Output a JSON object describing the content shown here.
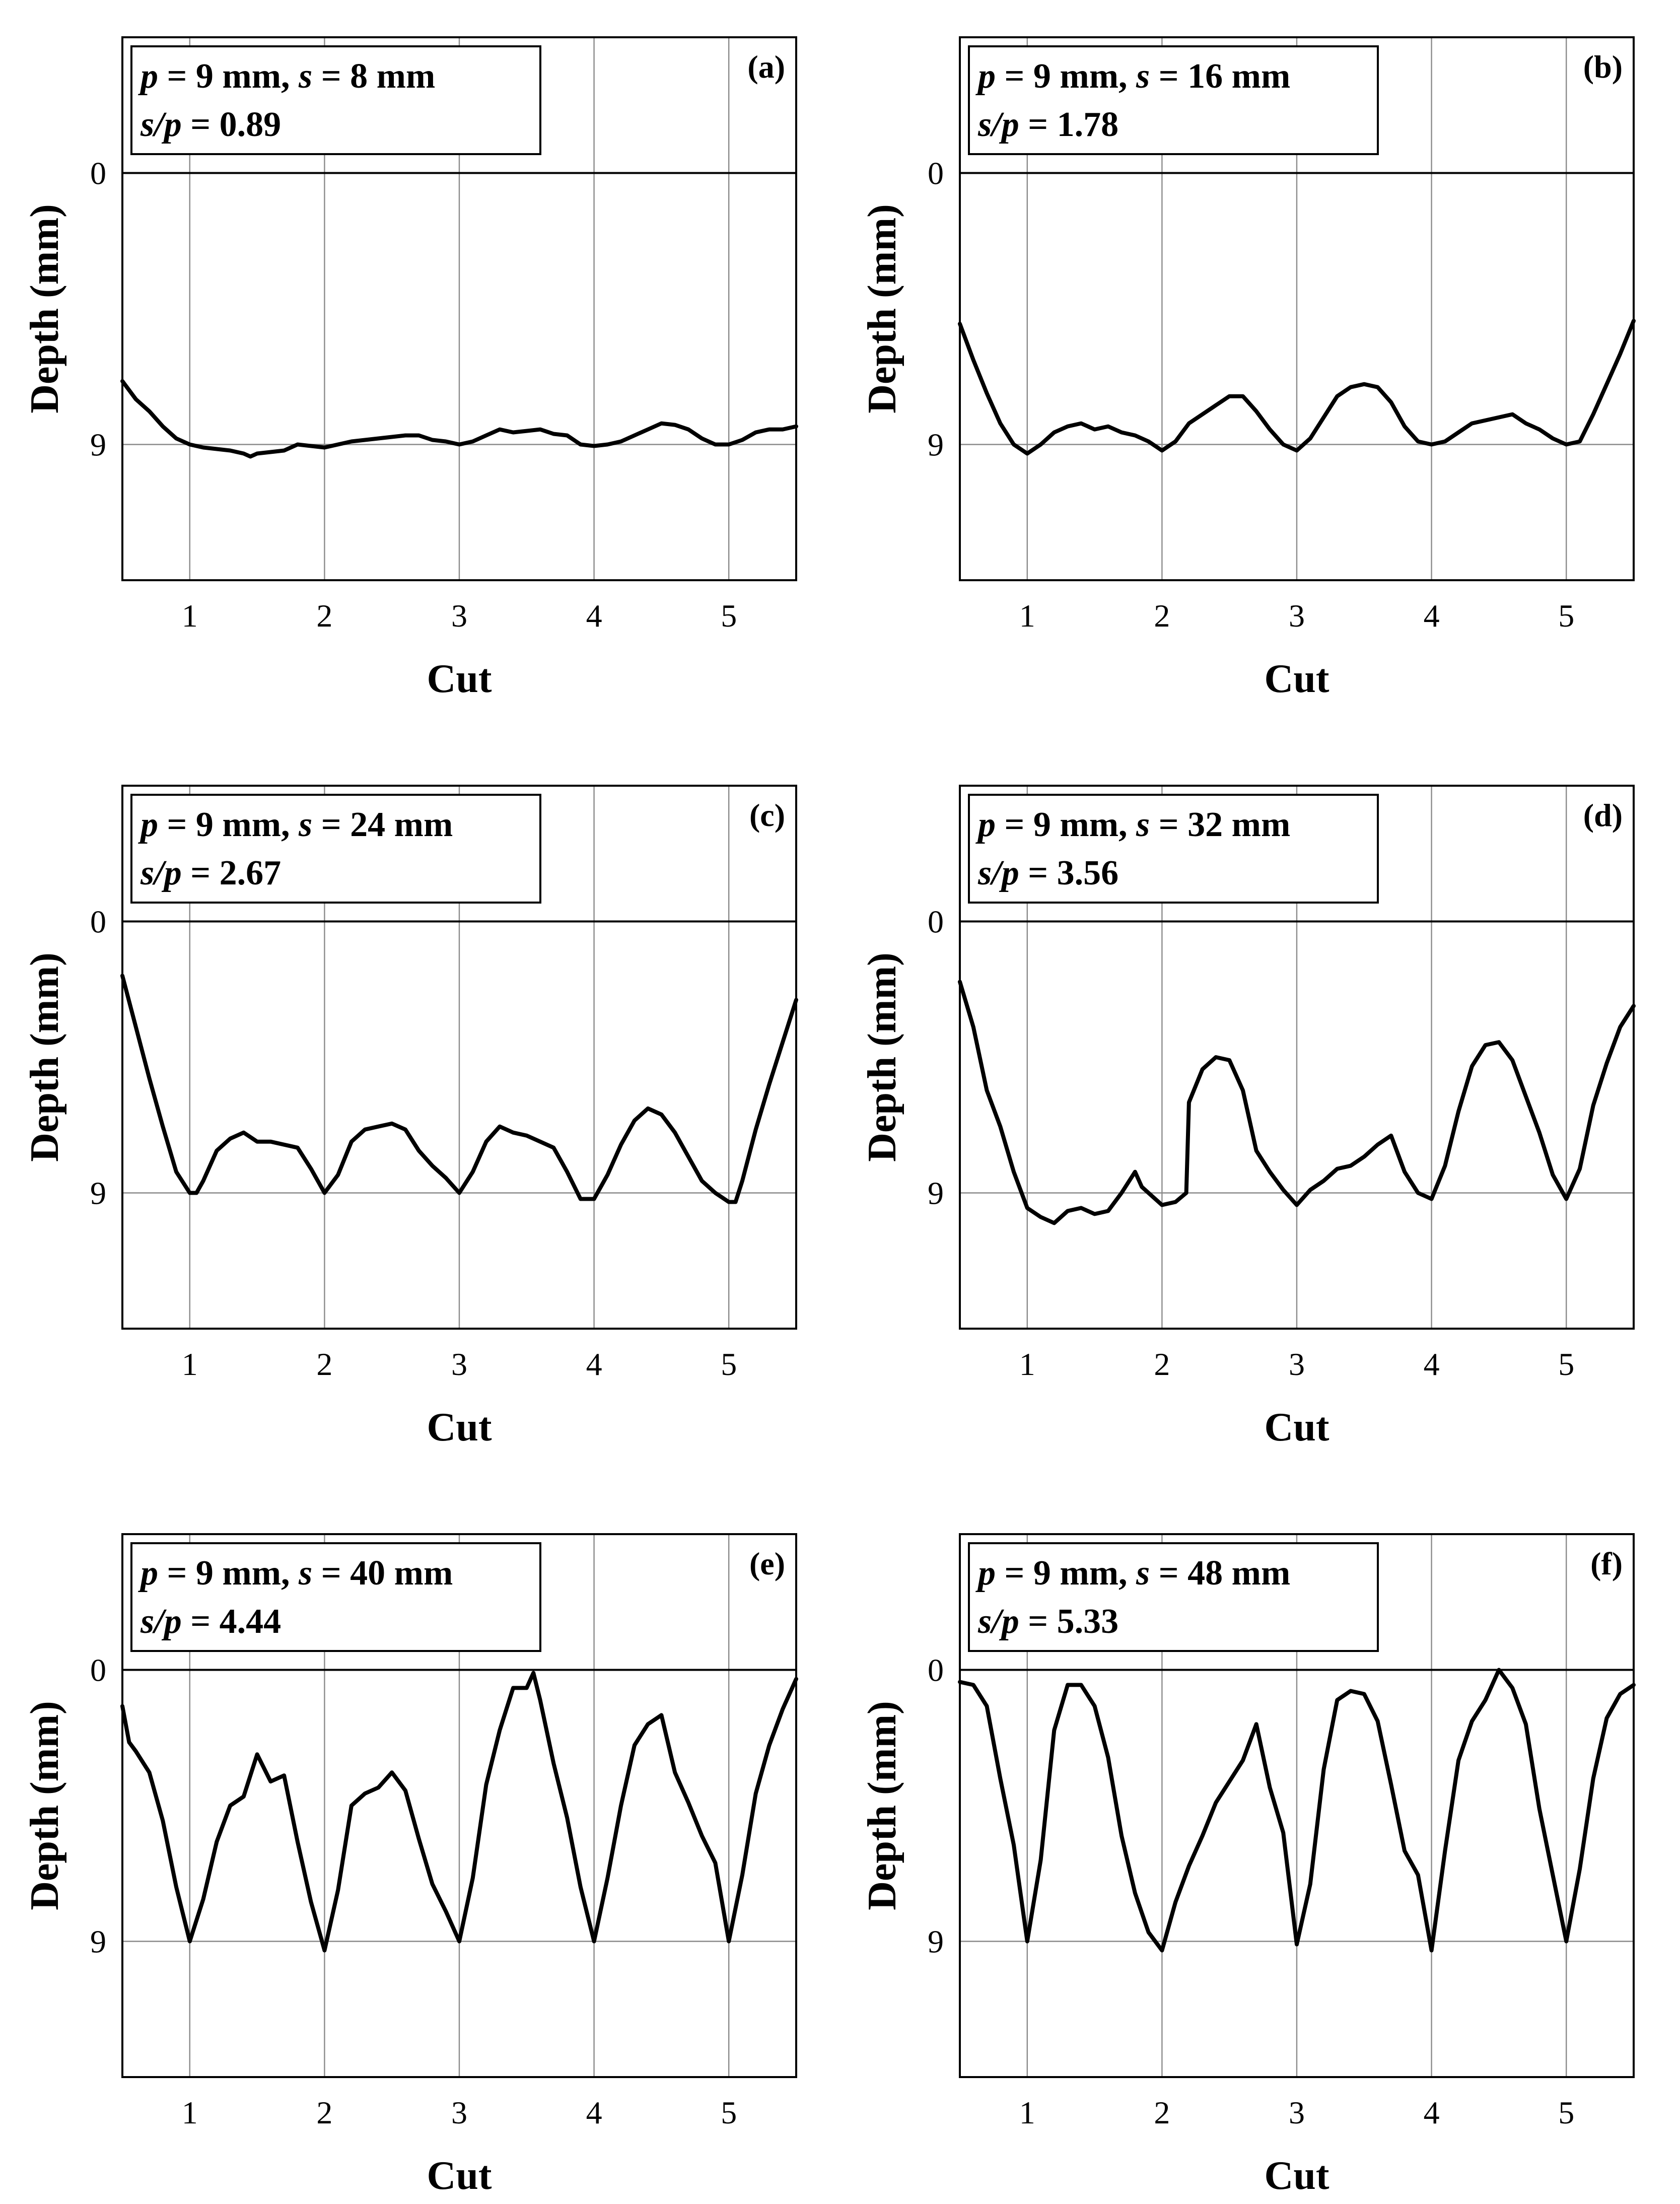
{
  "chart_data": [
    {
      "type": "line",
      "panel_label": "(a)",
      "info": {
        "line1": {
          "p_sym": "p",
          "p_val": " = 9 mm, ",
          "s_sym": "s",
          "s_val": " = 8 mm"
        },
        "line2": {
          "sp_sym": "s/p",
          "sp_val": " = 0.89"
        }
      },
      "xlabel": "Cut",
      "ylabel": "Depth (mm)",
      "xlim": [
        0.5,
        5.5
      ],
      "ylim": [
        13.5,
        -4.5
      ],
      "xticks": [
        "1",
        "2",
        "3",
        "4",
        "5"
      ],
      "yticks": [
        "0",
        "9"
      ],
      "x": [
        0.5,
        0.6,
        0.7,
        0.8,
        0.9,
        1.0,
        1.1,
        1.2,
        1.3,
        1.4,
        1.45,
        1.5,
        1.6,
        1.7,
        1.8,
        1.9,
        2.0,
        2.1,
        2.2,
        2.3,
        2.4,
        2.5,
        2.6,
        2.7,
        2.8,
        2.9,
        3.0,
        3.1,
        3.2,
        3.3,
        3.4,
        3.5,
        3.6,
        3.7,
        3.8,
        3.9,
        4.0,
        4.1,
        4.2,
        4.3,
        4.4,
        4.5,
        4.6,
        4.7,
        4.8,
        4.9,
        5.0,
        5.1,
        5.2,
        5.3,
        5.4,
        5.5
      ],
      "y": [
        6.9,
        7.5,
        7.9,
        8.4,
        8.8,
        9.0,
        9.1,
        9.15,
        9.2,
        9.3,
        9.4,
        9.3,
        9.25,
        9.2,
        9.0,
        9.05,
        9.1,
        9.0,
        8.9,
        8.85,
        8.8,
        8.75,
        8.7,
        8.7,
        8.85,
        8.9,
        9.0,
        8.9,
        8.7,
        8.5,
        8.6,
        8.55,
        8.5,
        8.65,
        8.7,
        9.0,
        9.05,
        9.0,
        8.9,
        8.7,
        8.5,
        8.3,
        8.35,
        8.5,
        8.8,
        9.0,
        9.0,
        8.85,
        8.6,
        8.5,
        8.5,
        8.4
      ]
    },
    {
      "type": "line",
      "panel_label": "(b)",
      "info": {
        "line1": {
          "p_sym": "p",
          "p_val": " = 9 mm, ",
          "s_sym": "s",
          "s_val": " = 16 mm"
        },
        "line2": {
          "sp_sym": "s/p",
          "sp_val": " = 1.78"
        }
      },
      "xlabel": "Cut",
      "ylabel": "Depth (mm)",
      "xlim": [
        0.5,
        5.5
      ],
      "ylim": [
        13.5,
        -4.5
      ],
      "xticks": [
        "1",
        "2",
        "3",
        "4",
        "5"
      ],
      "yticks": [
        "0",
        "9"
      ],
      "x": [
        0.5,
        0.6,
        0.7,
        0.8,
        0.9,
        1.0,
        1.1,
        1.2,
        1.3,
        1.4,
        1.5,
        1.6,
        1.7,
        1.8,
        1.9,
        2.0,
        2.1,
        2.2,
        2.3,
        2.4,
        2.5,
        2.6,
        2.7,
        2.8,
        2.9,
        3.0,
        3.1,
        3.2,
        3.3,
        3.4,
        3.5,
        3.6,
        3.7,
        3.8,
        3.9,
        4.0,
        4.1,
        4.2,
        4.3,
        4.4,
        4.5,
        4.6,
        4.7,
        4.8,
        4.9,
        5.0,
        5.1,
        5.2,
        5.3,
        5.4,
        5.5
      ],
      "y": [
        5.0,
        6.2,
        7.3,
        8.3,
        9.0,
        9.3,
        9.0,
        8.6,
        8.4,
        8.3,
        8.5,
        8.4,
        8.6,
        8.7,
        8.9,
        9.2,
        8.9,
        8.3,
        8.0,
        7.7,
        7.4,
        7.4,
        7.9,
        8.5,
        9.0,
        9.2,
        8.8,
        8.1,
        7.4,
        7.1,
        7.0,
        7.1,
        7.6,
        8.4,
        8.9,
        9.0,
        8.9,
        8.6,
        8.3,
        8.2,
        8.1,
        8.0,
        8.3,
        8.5,
        8.8,
        9.0,
        8.9,
        8.0,
        7.0,
        6.0,
        4.9
      ]
    },
    {
      "type": "line",
      "panel_label": "(c)",
      "info": {
        "line1": {
          "p_sym": "p",
          "p_val": " = 9 mm, ",
          "s_sym": "s",
          "s_val": " = 24 mm"
        },
        "line2": {
          "sp_sym": "s/p",
          "sp_val": " = 2.67"
        }
      },
      "xlabel": "Cut",
      "ylabel": "Depth (mm)",
      "xlim": [
        0.5,
        5.5
      ],
      "ylim": [
        13.5,
        -4.5
      ],
      "xticks": [
        "1",
        "2",
        "3",
        "4",
        "5"
      ],
      "yticks": [
        "0",
        "9"
      ],
      "x": [
        0.5,
        0.6,
        0.7,
        0.8,
        0.9,
        1.0,
        1.05,
        1.1,
        1.2,
        1.3,
        1.4,
        1.5,
        1.6,
        1.7,
        1.8,
        1.9,
        2.0,
        2.1,
        2.2,
        2.3,
        2.4,
        2.5,
        2.6,
        2.7,
        2.8,
        2.9,
        3.0,
        3.1,
        3.2,
        3.3,
        3.4,
        3.5,
        3.6,
        3.7,
        3.8,
        3.9,
        4.0,
        4.1,
        4.2,
        4.3,
        4.4,
        4.5,
        4.6,
        4.7,
        4.8,
        4.9,
        5.0,
        5.05,
        5.1,
        5.2,
        5.3,
        5.4,
        5.5
      ],
      "y": [
        1.8,
        3.5,
        5.2,
        6.8,
        8.3,
        9.0,
        9.0,
        8.6,
        7.6,
        7.2,
        7.0,
        7.3,
        7.3,
        7.4,
        7.5,
        8.2,
        9.0,
        8.4,
        7.3,
        6.9,
        6.8,
        6.7,
        6.9,
        7.6,
        8.1,
        8.5,
        9.0,
        8.3,
        7.3,
        6.8,
        7.0,
        7.1,
        7.3,
        7.5,
        8.3,
        9.2,
        9.2,
        8.4,
        7.4,
        6.6,
        6.2,
        6.4,
        7.0,
        7.8,
        8.6,
        9.0,
        9.3,
        9.3,
        8.6,
        6.9,
        5.4,
        4.0,
        2.6
      ]
    },
    {
      "type": "line",
      "panel_label": "(d)",
      "info": {
        "line1": {
          "p_sym": "p",
          "p_val": " = 9 mm, ",
          "s_sym": "s",
          "s_val": " = 32 mm"
        },
        "line2": {
          "sp_sym": "s/p",
          "sp_val": " = 3.56"
        }
      },
      "xlabel": "Cut",
      "ylabel": "Depth (mm)",
      "xlim": [
        0.5,
        5.5
      ],
      "ylim": [
        13.5,
        -4.5
      ],
      "xticks": [
        "1",
        "2",
        "3",
        "4",
        "5"
      ],
      "yticks": [
        "0",
        "9"
      ],
      "x": [
        0.5,
        0.6,
        0.7,
        0.8,
        0.9,
        1.0,
        1.1,
        1.2,
        1.3,
        1.4,
        1.5,
        1.6,
        1.7,
        1.8,
        1.85,
        1.9,
        2.0,
        2.1,
        2.18,
        2.2,
        2.3,
        2.4,
        2.5,
        2.6,
        2.7,
        2.8,
        2.9,
        3.0,
        3.1,
        3.2,
        3.3,
        3.4,
        3.5,
        3.6,
        3.7,
        3.8,
        3.9,
        4.0,
        4.1,
        4.2,
        4.3,
        4.4,
        4.5,
        4.6,
        4.7,
        4.8,
        4.9,
        5.0,
        5.1,
        5.2,
        5.3,
        5.4,
        5.5
      ],
      "y": [
        2.0,
        3.5,
        5.6,
        6.8,
        8.3,
        9.5,
        9.8,
        10.0,
        9.6,
        9.5,
        9.7,
        9.6,
        9.0,
        8.3,
        8.8,
        9.0,
        9.4,
        9.3,
        9.0,
        6.0,
        4.9,
        4.5,
        4.6,
        5.6,
        7.6,
        8.3,
        8.9,
        9.4,
        8.9,
        8.6,
        8.2,
        8.1,
        7.8,
        7.4,
        7.1,
        8.3,
        9.0,
        9.2,
        8.1,
        6.3,
        4.8,
        4.1,
        4.0,
        4.6,
        5.8,
        7.0,
        8.4,
        9.2,
        8.2,
        6.1,
        4.7,
        3.5,
        2.8
      ]
    },
    {
      "type": "line",
      "panel_label": "(e)",
      "info": {
        "line1": {
          "p_sym": "p",
          "p_val": " = 9 mm, ",
          "s_sym": "s",
          "s_val": " = 40 mm"
        },
        "line2": {
          "sp_sym": "s/p",
          "sp_val": " = 4.44"
        }
      },
      "xlabel": "Cut",
      "ylabel": "Depth (mm)",
      "xlim": [
        0.5,
        5.5
      ],
      "ylim": [
        13.5,
        -4.5
      ],
      "xticks": [
        "1",
        "2",
        "3",
        "4",
        "5"
      ],
      "yticks": [
        "0",
        "9"
      ],
      "x": [
        0.5,
        0.55,
        0.6,
        0.7,
        0.8,
        0.9,
        1.0,
        1.1,
        1.2,
        1.3,
        1.4,
        1.5,
        1.6,
        1.7,
        1.8,
        1.9,
        2.0,
        2.1,
        2.2,
        2.3,
        2.4,
        2.5,
        2.6,
        2.7,
        2.8,
        2.9,
        3.0,
        3.1,
        3.2,
        3.3,
        3.4,
        3.5,
        3.55,
        3.6,
        3.7,
        3.8,
        3.9,
        4.0,
        4.1,
        4.2,
        4.3,
        4.4,
        4.5,
        4.6,
        4.7,
        4.8,
        4.9,
        5.0,
        5.1,
        5.2,
        5.3,
        5.4,
        5.5
      ],
      "y": [
        1.2,
        2.4,
        2.7,
        3.4,
        5.0,
        7.2,
        9.0,
        7.6,
        5.7,
        4.5,
        4.2,
        2.8,
        3.7,
        3.5,
        5.7,
        7.7,
        9.3,
        7.3,
        4.5,
        4.1,
        3.9,
        3.4,
        4.0,
        5.6,
        7.1,
        8.0,
        9.0,
        6.9,
        3.8,
        2.0,
        0.6,
        0.6,
        0.1,
        1.0,
        3.1,
        4.9,
        7.2,
        9.0,
        6.9,
        4.5,
        2.5,
        1.8,
        1.5,
        3.4,
        4.4,
        5.5,
        6.4,
        9.0,
        6.8,
        4.1,
        2.5,
        1.3,
        0.3
      ]
    },
    {
      "type": "line",
      "panel_label": "(f)",
      "info": {
        "line1": {
          "p_sym": "p",
          "p_val": " = 9 mm, ",
          "s_sym": "s",
          "s_val": " = 48 mm"
        },
        "line2": {
          "sp_sym": "s/p",
          "sp_val": " = 5.33"
        }
      },
      "xlabel": "Cut",
      "ylabel": "Depth (mm)",
      "xlim": [
        0.5,
        5.5
      ],
      "ylim": [
        13.5,
        -4.5
      ],
      "xticks": [
        "1",
        "2",
        "3",
        "4",
        "5"
      ],
      "yticks": [
        "0",
        "9"
      ],
      "x": [
        0.5,
        0.6,
        0.7,
        0.8,
        0.9,
        1.0,
        1.1,
        1.2,
        1.3,
        1.4,
        1.5,
        1.6,
        1.7,
        1.8,
        1.9,
        2.0,
        2.1,
        2.2,
        2.3,
        2.4,
        2.5,
        2.6,
        2.7,
        2.8,
        2.9,
        3.0,
        3.1,
        3.2,
        3.3,
        3.4,
        3.5,
        3.6,
        3.7,
        3.8,
        3.9,
        4.0,
        4.1,
        4.2,
        4.3,
        4.4,
        4.5,
        4.6,
        4.7,
        4.8,
        4.9,
        5.0,
        5.1,
        5.2,
        5.3,
        5.4,
        5.5
      ],
      "y": [
        0.4,
        0.5,
        1.2,
        3.6,
        5.8,
        9.0,
        6.3,
        2.0,
        0.5,
        0.5,
        1.2,
        2.9,
        5.5,
        7.4,
        8.7,
        9.3,
        7.7,
        6.5,
        5.5,
        4.4,
        3.7,
        3.0,
        1.8,
        3.9,
        5.4,
        9.1,
        7.1,
        3.3,
        1.0,
        0.7,
        0.8,
        1.7,
        3.8,
        6.0,
        6.8,
        9.3,
        6.0,
        3.0,
        1.7,
        1.0,
        0.0,
        0.6,
        1.8,
        4.6,
        6.8,
        9.0,
        6.6,
        3.6,
        1.6,
        0.8,
        0.5
      ]
    }
  ]
}
